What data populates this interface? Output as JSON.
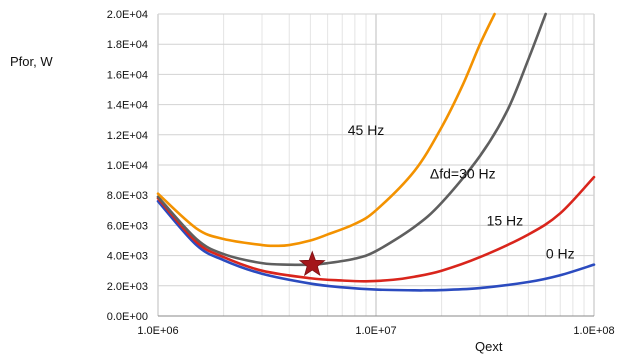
{
  "chart_data": {
    "type": "line",
    "title": "",
    "xlabel": "Qext",
    "ylabel": "Pfor, W",
    "xscale": "log",
    "xlim": [
      1000000,
      100000000
    ],
    "ylim": [
      0,
      20000
    ],
    "grid": true,
    "legend": "none",
    "xticks": [
      1000000,
      10000000,
      100000000
    ],
    "xtick_labels": [
      "1.0E+06",
      "1.0E+07",
      "1.0E+08"
    ],
    "yticks": [
      0,
      2000,
      4000,
      6000,
      8000,
      10000,
      12000,
      14000,
      16000,
      18000,
      20000
    ],
    "ytick_labels": [
      "0.0E+00",
      "2.0E+03",
      "4.0E+03",
      "6.0E+03",
      "8.0E+03",
      "1.0E+04",
      "1.2E+04",
      "1.4E+04",
      "1.6E+04",
      "1.8E+04",
      "2.0E+04"
    ],
    "series": [
      {
        "color": "#2b4bbf",
        "x": [
          1000000,
          1500000,
          2000000,
          3000000,
          5000000,
          7000000,
          10000000,
          15000000,
          17000000,
          20000000,
          30000000,
          50000000,
          70000000,
          100000000
        ],
        "y": [
          7600,
          4700,
          3700,
          2800,
          2150,
          1900,
          1750,
          1700,
          1700,
          1720,
          1850,
          2250,
          2700,
          3400
        ]
      },
      {
        "color": "#d9251c",
        "x": [
          1000000,
          1500000,
          2000000,
          3000000,
          5000000,
          7000000,
          9000000,
          12000000,
          15000000,
          20000000,
          30000000,
          50000000,
          70000000,
          100000000
        ],
        "y": [
          7800,
          4900,
          3900,
          3000,
          2500,
          2350,
          2300,
          2400,
          2600,
          3000,
          3900,
          5400,
          6800,
          9200
        ]
      },
      {
        "color": "#5f5f5f",
        "x": [
          1000000,
          1500000,
          2000000,
          3000000,
          4000000,
          5000000,
          6000000,
          8000000,
          10000000,
          15000000,
          20000000,
          30000000,
          40000000,
          50000000,
          60000000
        ],
        "y": [
          7900,
          5100,
          4100,
          3500,
          3400,
          3400,
          3500,
          3800,
          4300,
          5900,
          7500,
          10600,
          13600,
          17000,
          20000
        ]
      },
      {
        "color": "#f39200",
        "x": [
          1000000,
          1500000,
          2000000,
          3000000,
          3500000,
          4000000,
          5000000,
          6000000,
          8000000,
          10000000,
          15000000,
          20000000,
          25000000,
          30000000,
          35000000
        ],
        "y": [
          8100,
          5800,
          5100,
          4700,
          4650,
          4700,
          5000,
          5400,
          6100,
          7000,
          9600,
          12500,
          15300,
          18000,
          20000
        ]
      }
    ],
    "annotations": [
      {
        "text": "45 Hz",
        "x": 9000000,
        "y": 12000
      },
      {
        "text": "Δfd=30 Hz",
        "x": 25000000,
        "y": 9100
      },
      {
        "text": "15 Hz",
        "x": 39000000,
        "y": 6000
      },
      {
        "text": "0 Hz",
        "x": 70000000,
        "y": 3800
      }
    ],
    "marker": {
      "shape": "star",
      "color": "#a4161a",
      "x": 5100000,
      "y": 3400
    }
  }
}
